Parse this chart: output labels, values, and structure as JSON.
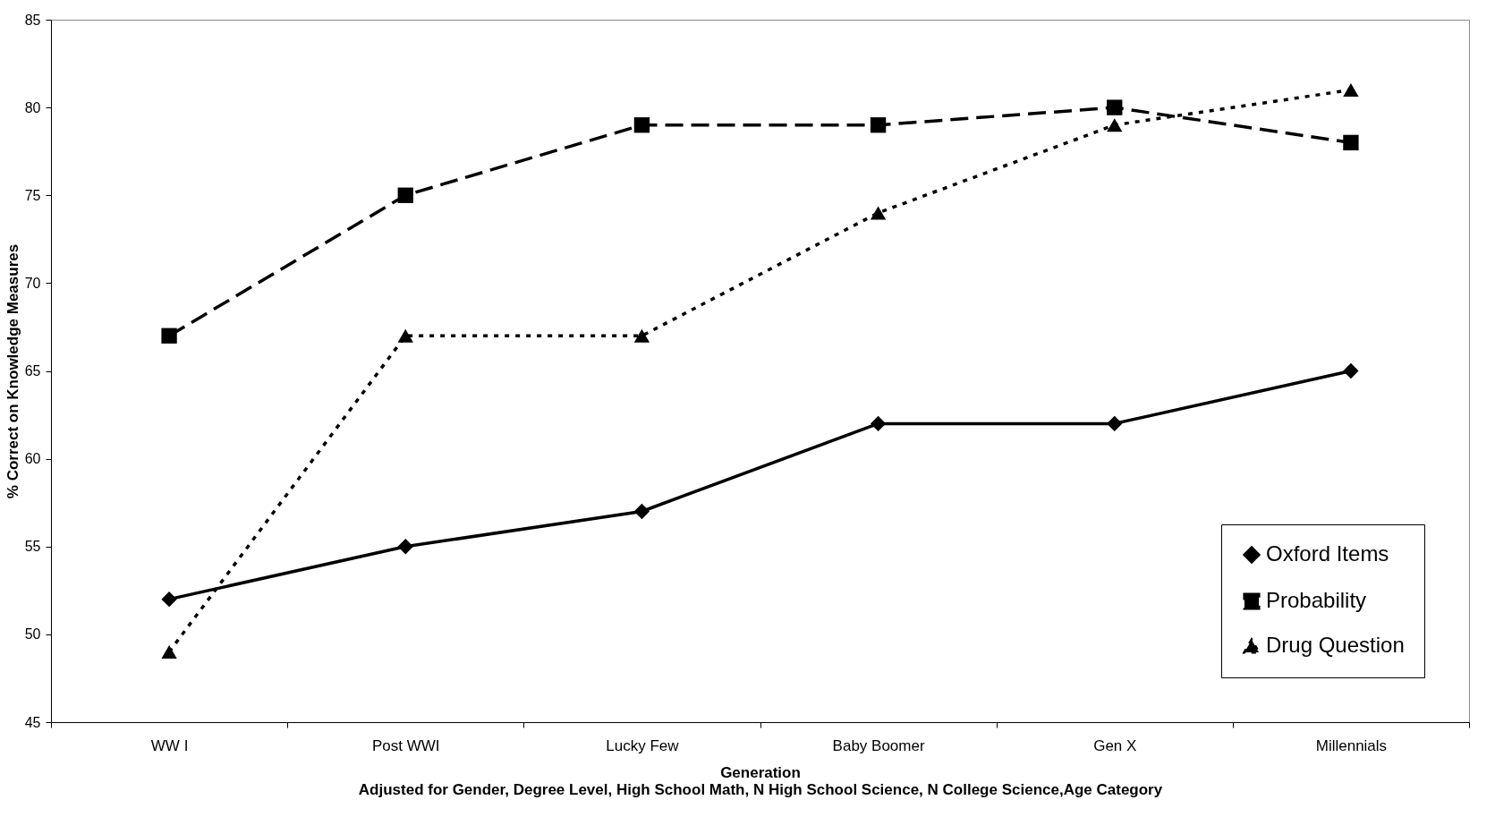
{
  "chart_data": {
    "type": "line",
    "xlabel": "Generation",
    "ylabel": "% Correct on Knowledge Measures",
    "annotations": [
      "Adjusted for Gender, Degree Level, High School Math, N High School Science, N College Science,Age Category"
    ],
    "categories": [
      "WW I",
      "Post WWI",
      "Lucky Few",
      "Baby Boomer",
      "Gen X",
      "Millennials"
    ],
    "series": [
      {
        "name": "Oxford Items",
        "color": "#000000",
        "marker": "diamond",
        "line_style": "solid",
        "values": [
          52,
          55,
          57,
          62,
          62,
          65
        ]
      },
      {
        "name": "Probability",
        "color": "#000000",
        "marker": "square",
        "line_style": "dashed",
        "values": [
          67,
          75,
          79,
          79,
          80,
          78
        ]
      },
      {
        "name": "Drug Question",
        "color": "#000000",
        "marker": "triangle",
        "line_style": "dotted",
        "values": [
          49,
          67,
          67,
          74,
          79,
          81
        ]
      }
    ],
    "ylim": [
      45,
      85
    ],
    "yticks": [
      45,
      50,
      55,
      60,
      65,
      70,
      75,
      80,
      85
    ],
    "grid": false,
    "legend": "bottom right"
  }
}
